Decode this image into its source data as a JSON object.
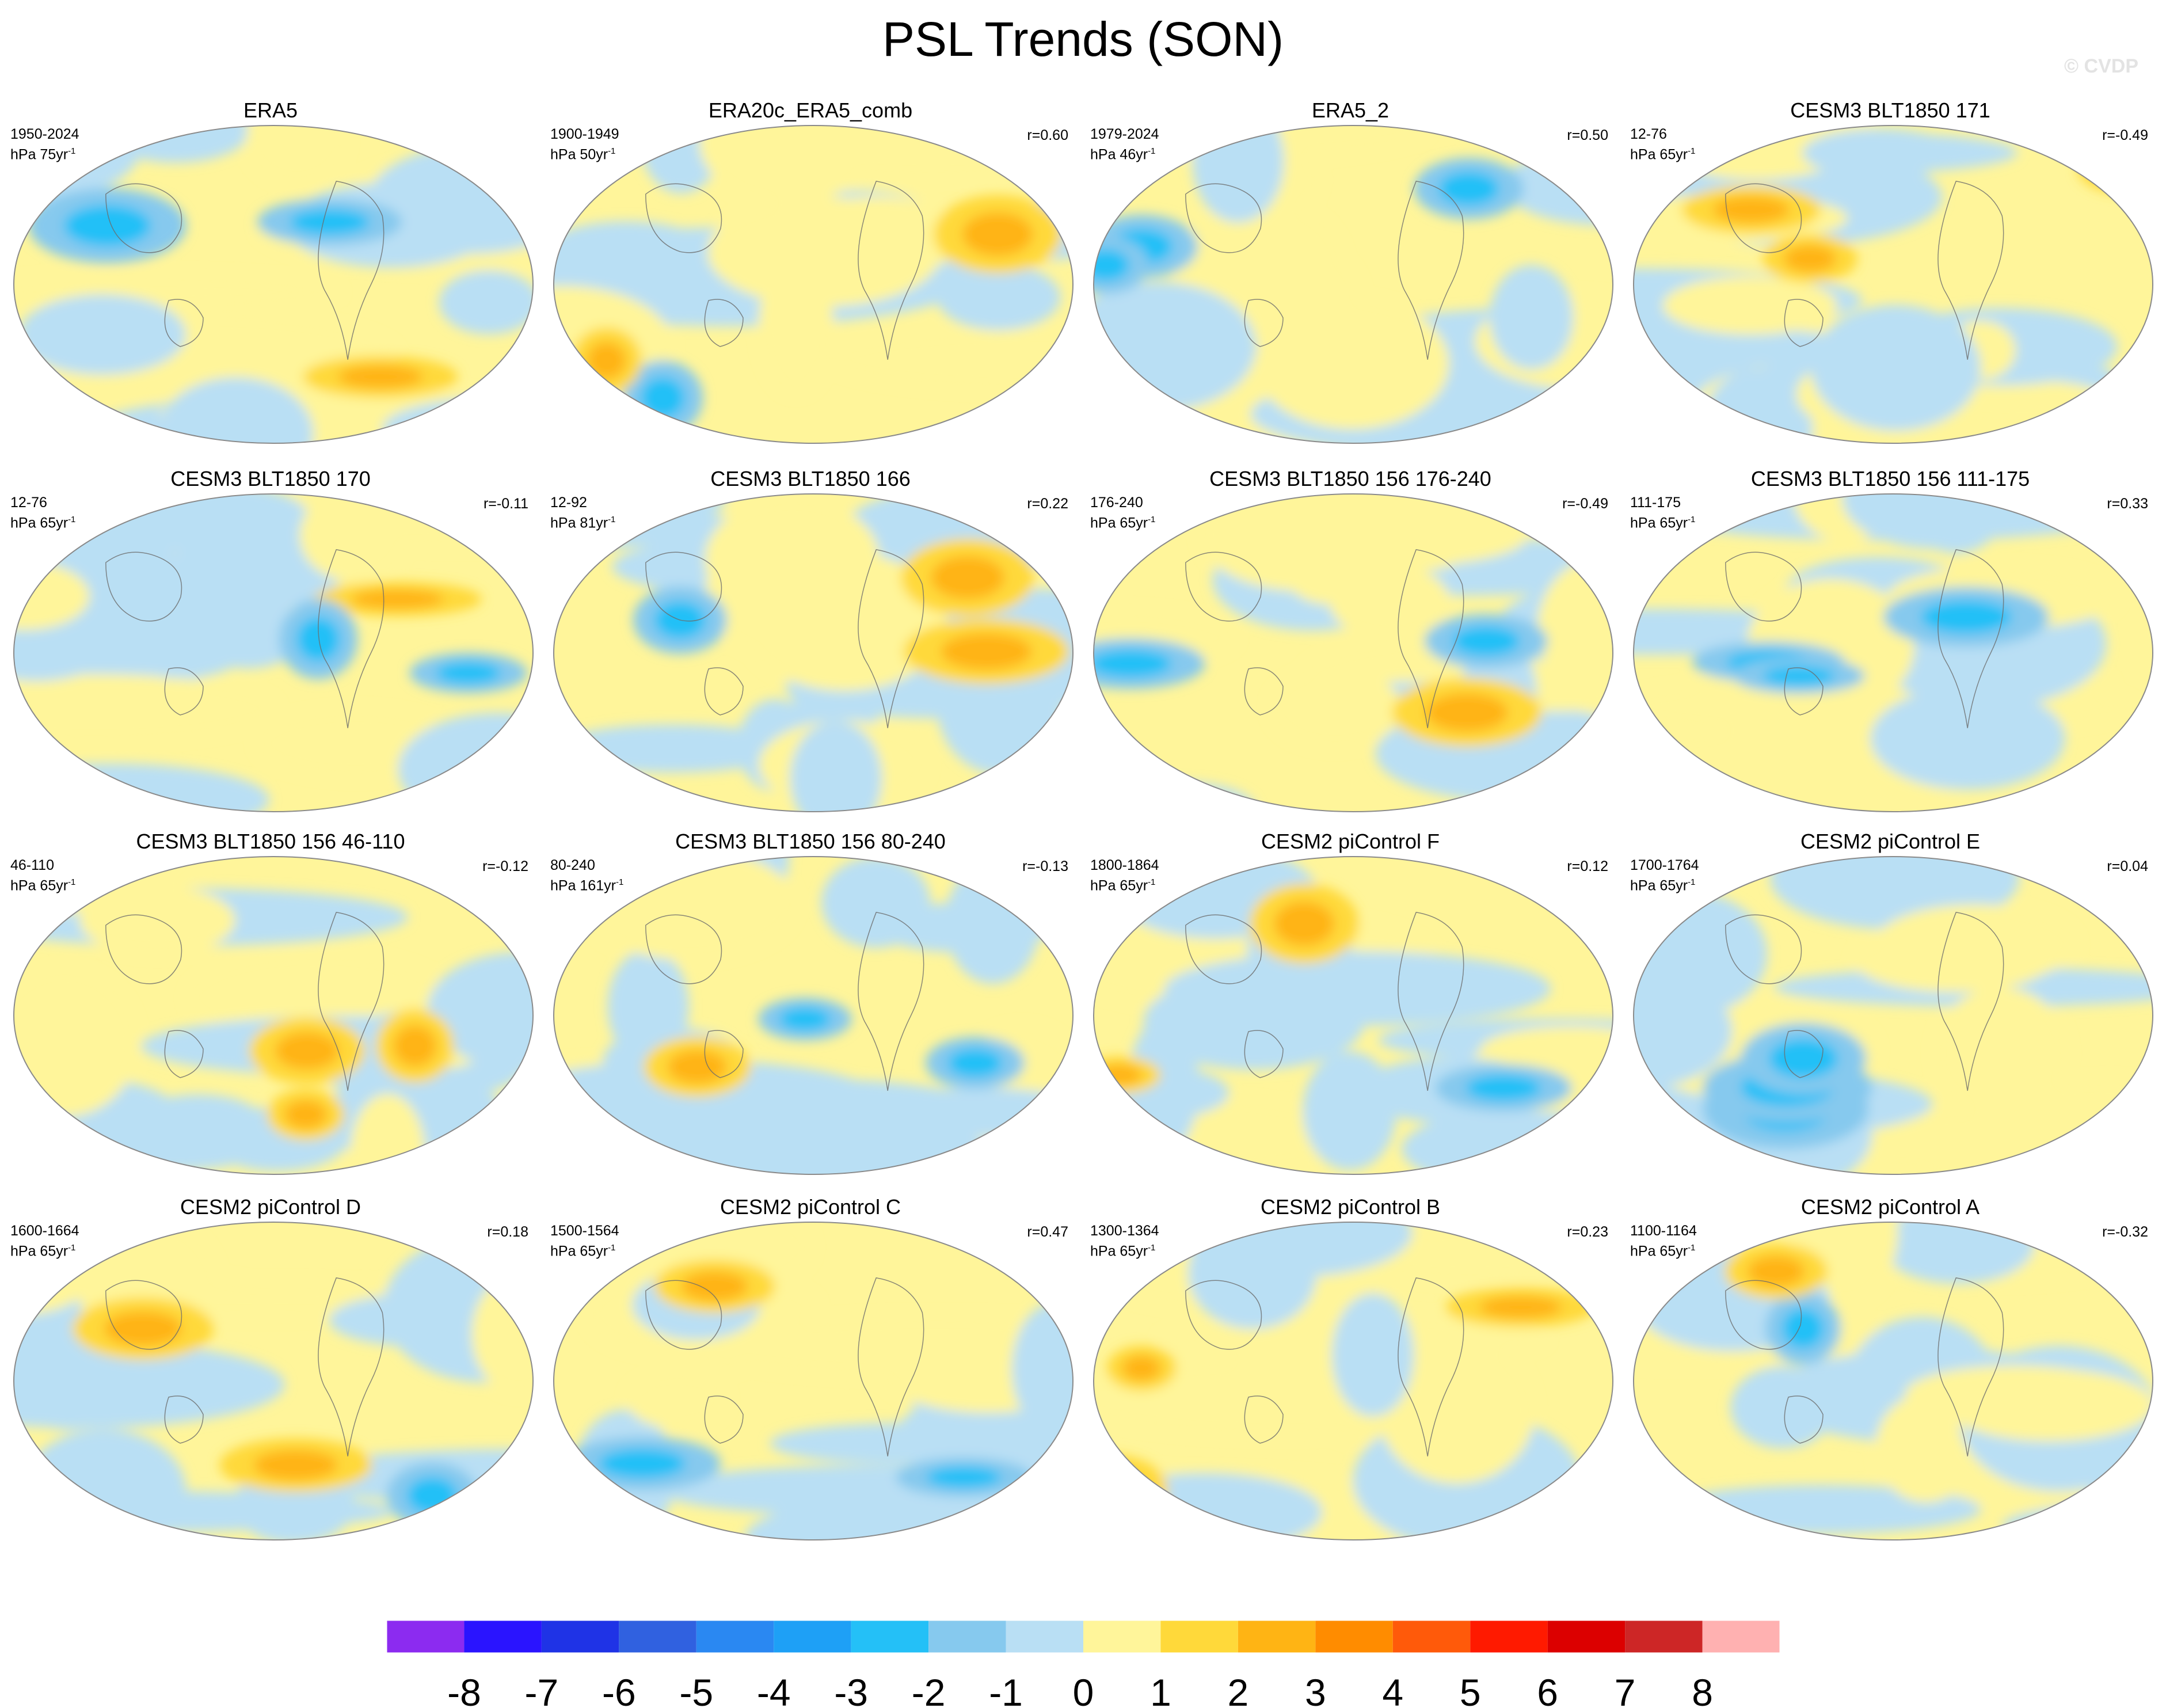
{
  "title": "PSL Trends (SON)",
  "watermark": "© CVDP",
  "chart_data": {
    "type": "contour-map-grid",
    "title": "PSL Trends (SON)",
    "colorbar": {
      "levels": [
        -8,
        -7,
        -6,
        -5,
        -4,
        -3,
        -2,
        -1,
        0,
        1,
        2,
        3,
        4,
        5,
        6,
        7,
        8
      ],
      "colors": [
        "#8c2bf0",
        "#2a14ff",
        "#1f33e6",
        "#3061e0",
        "#2a88f2",
        "#1ea0f6",
        "#24c0f7",
        "#86c9ee",
        "#b9dff4",
        "#fff59a",
        "#ffd93a",
        "#ffb414",
        "#ff8c00",
        "#ff5a0a",
        "#ff1a00",
        "#dc0000",
        "#cd2626",
        "#ffb1b1"
      ]
    },
    "panels": [
      {
        "name": "ERA5",
        "period": "1950-2024",
        "units_prefix": "hPa 75yr",
        "corr": ""
      },
      {
        "name": "ERA20c_ERA5_comb",
        "period": "1900-1949",
        "units_prefix": "hPa 50yr",
        "corr": "r=0.60"
      },
      {
        "name": "ERA5_2",
        "period": "1979-2024",
        "units_prefix": "hPa 46yr",
        "corr": "r=0.50"
      },
      {
        "name": "CESM3 BLT1850 171",
        "period": "12-76",
        "units_prefix": "hPa 65yr",
        "corr": "r=-0.49"
      },
      {
        "name": "CESM3 BLT1850 170",
        "period": "12-76",
        "units_prefix": "hPa 65yr",
        "corr": "r=-0.11"
      },
      {
        "name": "CESM3 BLT1850 166",
        "period": "12-92",
        "units_prefix": "hPa 81yr",
        "corr": "r=0.22"
      },
      {
        "name": "CESM3 BLT1850 156 176-240",
        "period": "176-240",
        "units_prefix": "hPa 65yr",
        "corr": "r=-0.49"
      },
      {
        "name": "CESM3 BLT1850 156 111-175",
        "period": "111-175",
        "units_prefix": "hPa 65yr",
        "corr": "r=0.33"
      },
      {
        "name": "CESM3 BLT1850 156 46-110",
        "period": "46-110",
        "units_prefix": "hPa 65yr",
        "corr": "r=-0.12"
      },
      {
        "name": "CESM3 BLT1850 156 80-240",
        "period": "80-240",
        "units_prefix": "hPa 161yr",
        "corr": "r=-0.13"
      },
      {
        "name": "CESM2 piControl F",
        "period": "1800-1864",
        "units_prefix": "hPa 65yr",
        "corr": "r=0.12"
      },
      {
        "name": "CESM2 piControl E",
        "period": "1700-1764",
        "units_prefix": "hPa 65yr",
        "corr": "r=0.04"
      },
      {
        "name": "CESM2 piControl D",
        "period": "1600-1664",
        "units_prefix": "hPa 65yr",
        "corr": "r=0.18"
      },
      {
        "name": "CESM2 piControl C",
        "period": "1500-1564",
        "units_prefix": "hPa 65yr",
        "corr": "r=0.47"
      },
      {
        "name": "CESM2 piControl B",
        "period": "1300-1364",
        "units_prefix": "hPa 65yr",
        "corr": "r=0.23"
      },
      {
        "name": "CESM2 piControl A",
        "period": "1100-1164",
        "units_prefix": "hPa 65yr",
        "corr": "r=-0.32"
      }
    ]
  }
}
